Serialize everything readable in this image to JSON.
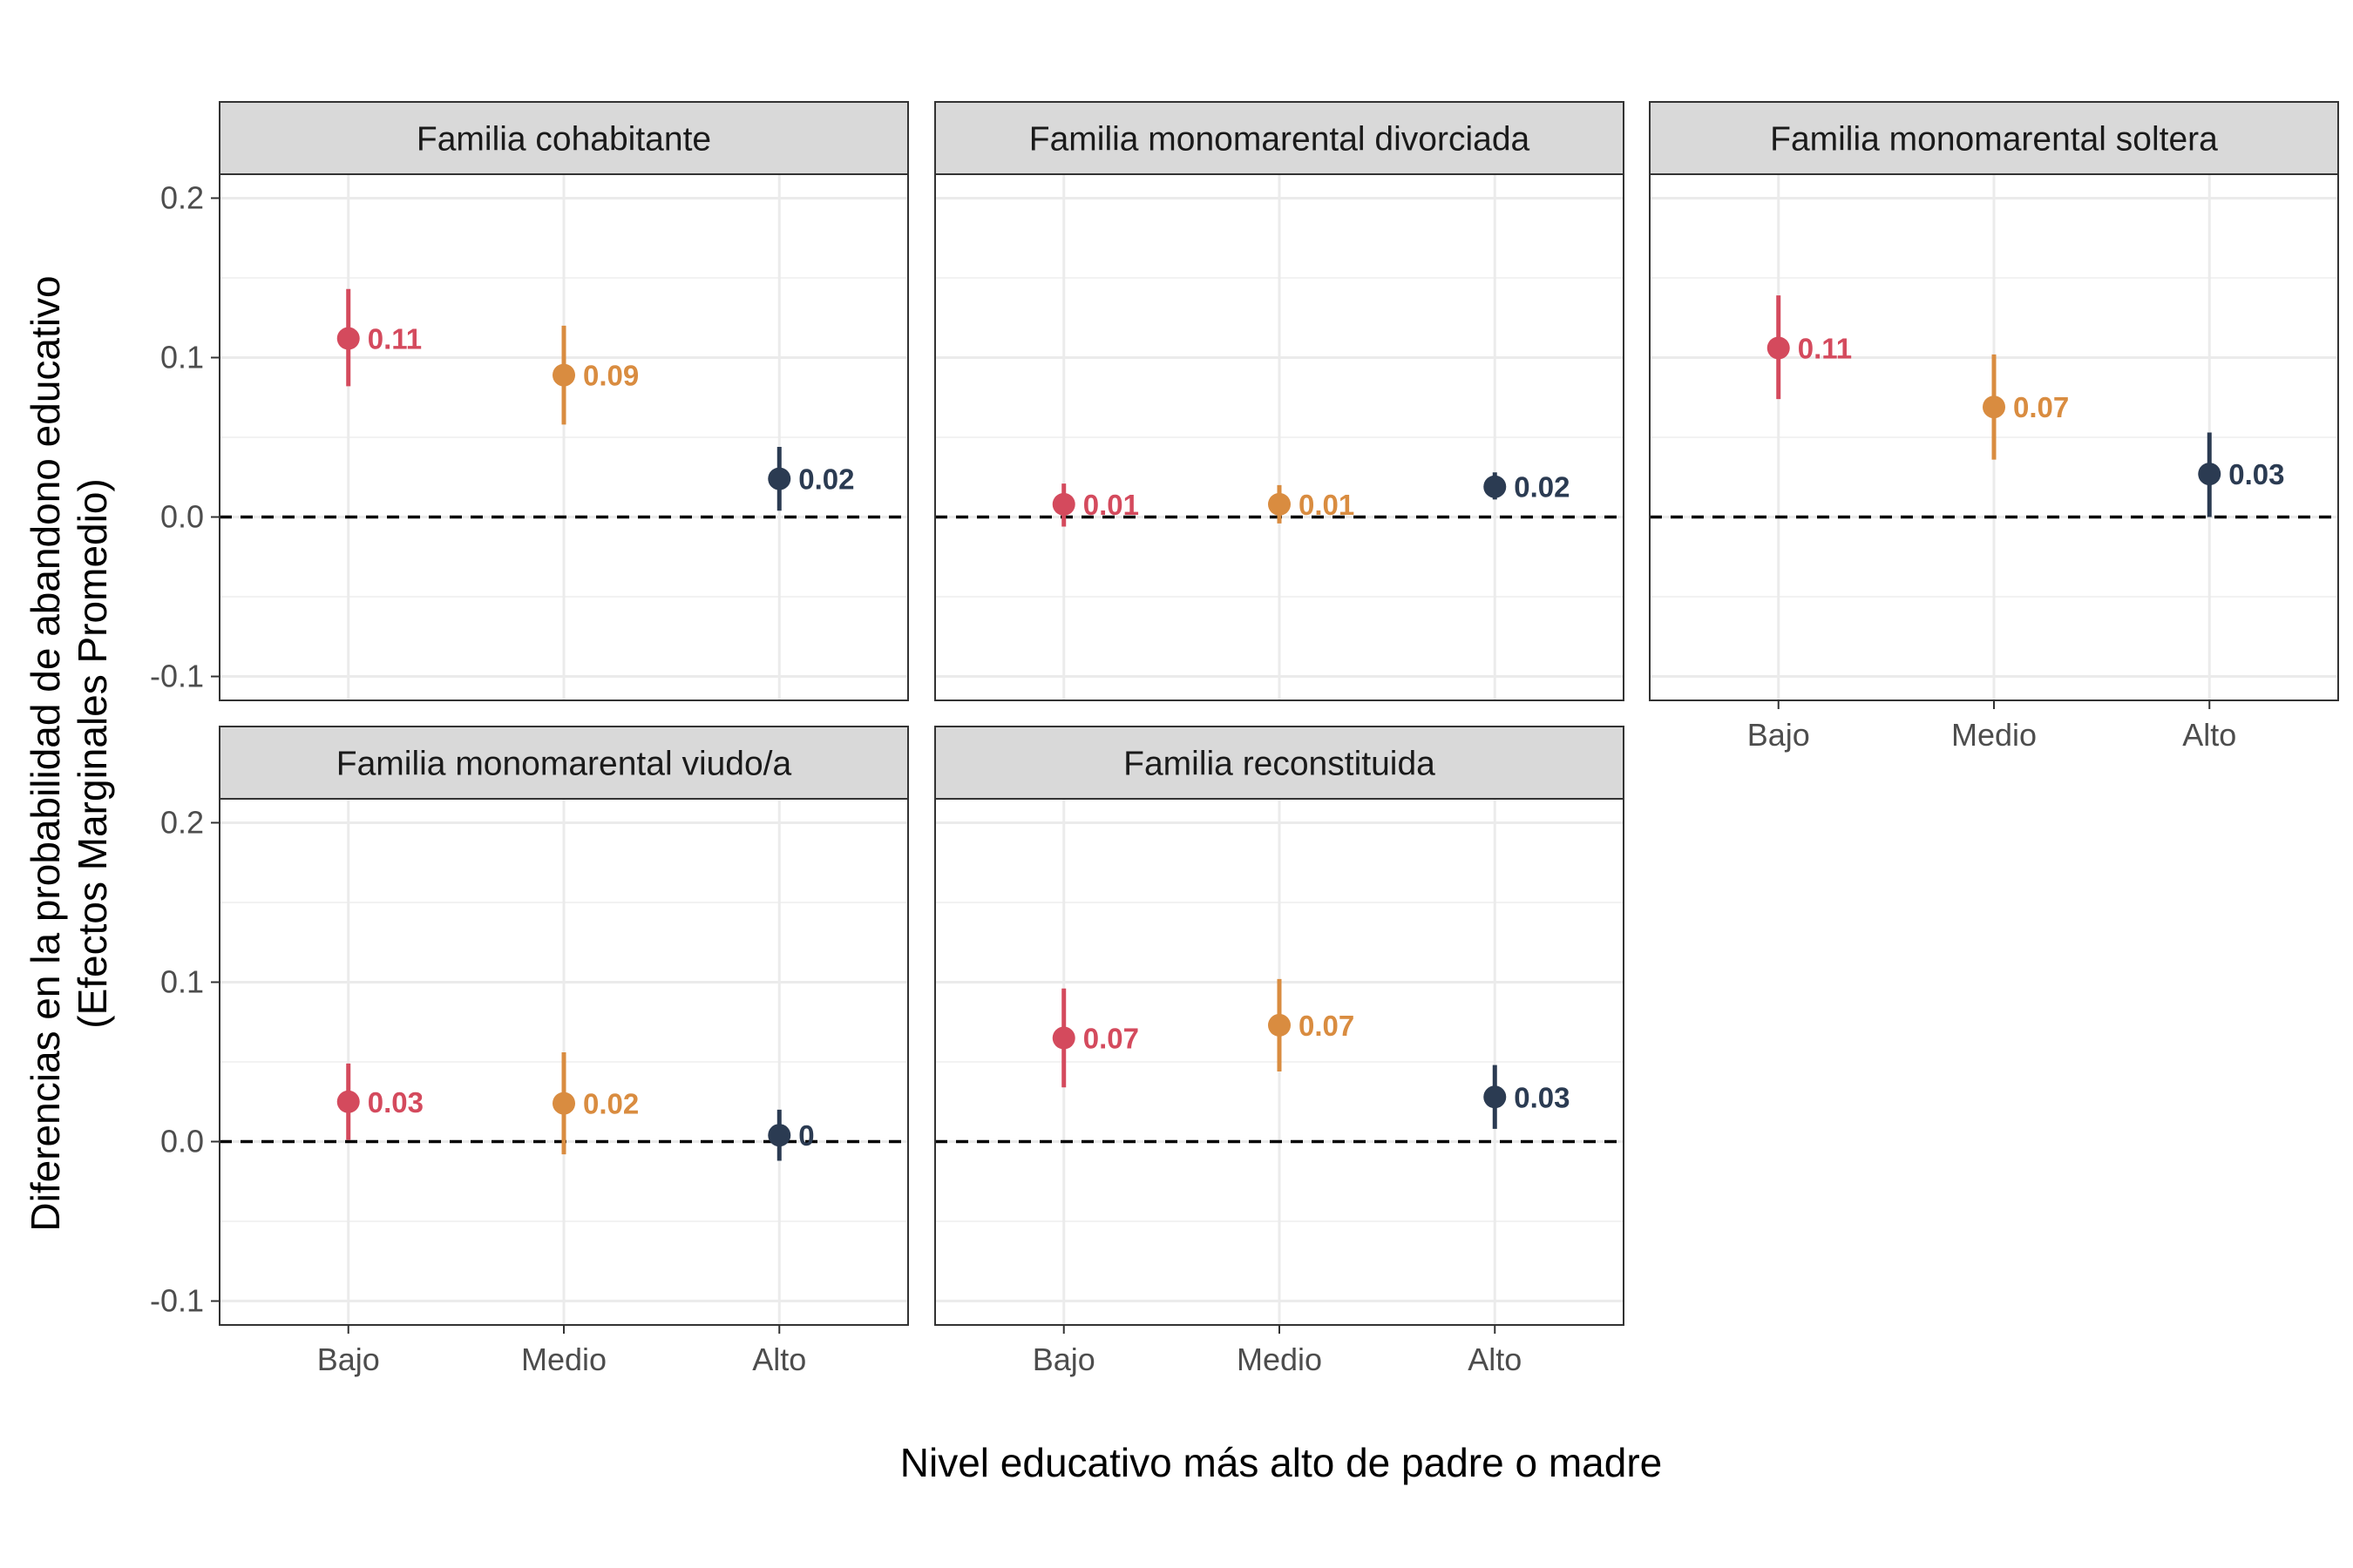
{
  "chart_data": {
    "type": "scatter",
    "subtype": "pointrange-facets",
    "xlabel": "Nivel educativo más alto de padre o madre",
    "ylabel_line1": "Diferencias en la probabilidad de abandono educativo",
    "ylabel_line2": "(Efectos Marginales Promedio)",
    "categories": [
      "Bajo",
      "Medio",
      "Alto"
    ],
    "ylim": [
      -0.115,
      0.215
    ],
    "yticks": [
      -0.1,
      0.0,
      0.1,
      0.2
    ],
    "ytick_labels": [
      "-0.1",
      "0.0",
      "0.1",
      "0.2"
    ],
    "reference_line": 0,
    "grid": true,
    "colors": {
      "Bajo": "#d44a5d",
      "Medio": "#d98c40",
      "Alto": "#2b3b52"
    },
    "panels": [
      {
        "title": "Familia cohabitante",
        "points": [
          {
            "x": "Bajo",
            "y": 0.112,
            "lower": 0.082,
            "upper": 0.143,
            "label": "0.11"
          },
          {
            "x": "Medio",
            "y": 0.089,
            "lower": 0.058,
            "upper": 0.12,
            "label": "0.09"
          },
          {
            "x": "Alto",
            "y": 0.024,
            "lower": 0.004,
            "upper": 0.044,
            "label": "0.02"
          }
        ]
      },
      {
        "title": "Familia monomarental divorciada",
        "points": [
          {
            "x": "Bajo",
            "y": 0.008,
            "lower": -0.006,
            "upper": 0.021,
            "label": "0.01"
          },
          {
            "x": "Medio",
            "y": 0.008,
            "lower": -0.004,
            "upper": 0.02,
            "label": "0.01"
          },
          {
            "x": "Alto",
            "y": 0.019,
            "lower": 0.011,
            "upper": 0.028,
            "label": "0.02"
          }
        ]
      },
      {
        "title": "Familia monomarental soltera",
        "points": [
          {
            "x": "Bajo",
            "y": 0.106,
            "lower": 0.074,
            "upper": 0.139,
            "label": "0.11"
          },
          {
            "x": "Medio",
            "y": 0.069,
            "lower": 0.036,
            "upper": 0.102,
            "label": "0.07"
          },
          {
            "x": "Alto",
            "y": 0.027,
            "lower": 0.0,
            "upper": 0.053,
            "label": "0.03"
          }
        ]
      },
      {
        "title": "Familia monomarental viudo/a",
        "points": [
          {
            "x": "Bajo",
            "y": 0.025,
            "lower": 0.001,
            "upper": 0.049,
            "label": "0.03"
          },
          {
            "x": "Medio",
            "y": 0.024,
            "lower": -0.008,
            "upper": 0.056,
            "label": "0.02"
          },
          {
            "x": "Alto",
            "y": 0.004,
            "lower": -0.012,
            "upper": 0.02,
            "label": "0"
          }
        ]
      },
      {
        "title": "Familia reconstituida",
        "points": [
          {
            "x": "Bajo",
            "y": 0.065,
            "lower": 0.034,
            "upper": 0.096,
            "label": "0.07"
          },
          {
            "x": "Medio",
            "y": 0.073,
            "lower": 0.044,
            "upper": 0.102,
            "label": "0.07"
          },
          {
            "x": "Alto",
            "y": 0.028,
            "lower": 0.008,
            "upper": 0.048,
            "label": "0.03"
          }
        ]
      }
    ]
  }
}
